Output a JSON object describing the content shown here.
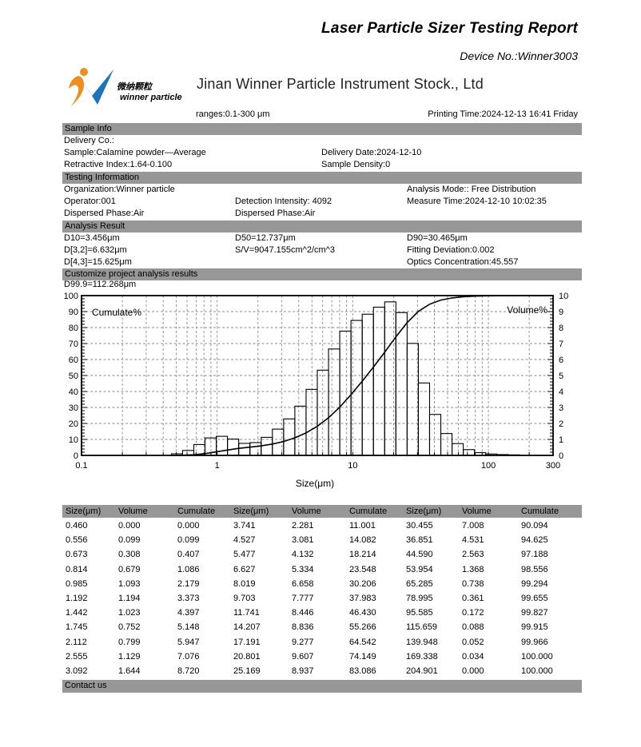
{
  "report": {
    "title": "Laser Particle Sizer Testing Report",
    "device_no": "Device No.:Winner3003",
    "company": "Jinan Winner Particle Instrument Stock., Ltd",
    "logo_cn": "微纳颗粒",
    "logo_en": "winner particle",
    "ranges": "ranges:0.1-300 μm",
    "printing_time": "Printing Time:2024-12-13 16:41 Friday"
  },
  "sections": {
    "sample_info": {
      "header": "Sample Info",
      "delivery_co": "Delivery Co.:",
      "sample": "Sample:Calamine powder—Average",
      "delivery_date": "Delivery Date:2024-12-10",
      "retractive_index": "Retractive Index:1.64-0.100",
      "sample_density": "Sample Density:0"
    },
    "testing_information": {
      "header": "Testing Information",
      "organization": "Organization:Winner particle",
      "analysis_mode": "Analysis Mode::  Free Distribution",
      "operator": "Operator:001",
      "detection_intensity": "Detection Intensity:  4092",
      "measure_time": "Measure Time:2024-12-10 10:02:35",
      "dispersed_phase_a": "Dispersed Phase:Air",
      "dispersed_phase_b": "Dispersed Phase:Air"
    },
    "analysis_result": {
      "header": "Analysis Result",
      "d10": "D10=3.456μm",
      "d50": "D50=12.737μm",
      "d90": "D90=30.465μm",
      "d32": "D[3,2]=6.632μm",
      "sv": "S/V=9047.155cm^2/cm^3",
      "fitting_deviation": "Fitting Deviation:0.002",
      "d43": "D[4,3]=15.625μm",
      "optics_concentration": "Optics Concentration:45.557"
    },
    "customize": {
      "header": "Customize project analysis results",
      "d999": "D99.9=112.268μm"
    },
    "contact": {
      "header": "Contact us"
    }
  },
  "chart_data": {
    "type": "bar",
    "subtype": "log-histogram with cumulative line",
    "title": "",
    "xlabel": "Size(μm)",
    "x_scale": "log",
    "x_min": 0.1,
    "x_max": 300,
    "x_tick_labels": [
      "0.1",
      "1",
      "10",
      "100",
      "300"
    ],
    "x_tick_values": [
      0.1,
      1,
      10,
      100,
      300
    ],
    "left_axis": {
      "label": "Cumulate%",
      "min": 0,
      "max": 100,
      "step": 10
    },
    "right_axis": {
      "label": "Volume%",
      "min": 0,
      "max": 10,
      "step": 1
    },
    "grid": "dashed",
    "sizes_um": [
      0.46,
      0.556,
      0.673,
      0.814,
      0.985,
      1.192,
      1.442,
      1.745,
      2.112,
      2.555,
      3.092,
      3.741,
      4.527,
      5.477,
      6.627,
      8.019,
      9.703,
      11.741,
      14.207,
      17.191,
      20.801,
      25.169,
      30.455,
      36.851,
      44.59,
      53.954,
      65.285,
      78.995,
      95.585,
      115.659,
      139.948,
      169.338,
      204.901
    ],
    "series": [
      {
        "name": "Volume%",
        "axis": "right",
        "style": "bars",
        "values": [
          0.0,
          0.099,
          0.308,
          0.679,
          1.093,
          1.194,
          1.023,
          0.752,
          0.799,
          1.129,
          1.644,
          2.281,
          3.081,
          4.132,
          5.334,
          6.658,
          7.777,
          8.446,
          8.836,
          9.277,
          9.607,
          8.937,
          7.008,
          4.531,
          2.563,
          1.368,
          0.738,
          0.361,
          0.172,
          0.088,
          0.052,
          0.034,
          0.0
        ]
      },
      {
        "name": "Cumulate%",
        "axis": "left",
        "style": "line",
        "values": [
          0.0,
          0.099,
          0.407,
          1.086,
          2.179,
          3.373,
          4.397,
          5.148,
          5.947,
          7.076,
          8.72,
          11.001,
          14.082,
          18.214,
          23.548,
          30.206,
          37.983,
          46.43,
          55.266,
          64.542,
          74.149,
          83.086,
          90.094,
          94.625,
          97.188,
          98.556,
          99.294,
          99.655,
          99.827,
          99.915,
          99.966,
          100.0,
          100.0
        ]
      }
    ]
  },
  "table": {
    "headers": [
      "Size(μm)",
      "Volume",
      "Cumulate",
      "Size(μm)",
      "Volume",
      "Cumulate",
      "Size(μm)",
      "Volume",
      "Cumulate"
    ],
    "rows": [
      [
        "0.460",
        "0.000",
        "0.000",
        "3.741",
        "2.281",
        "11.001",
        "30.455",
        "7.008",
        "90.094"
      ],
      [
        "0.556",
        "0.099",
        "0.099",
        "4.527",
        "3.081",
        "14.082",
        "36.851",
        "4.531",
        "94.625"
      ],
      [
        "0.673",
        "0.308",
        "0.407",
        "5.477",
        "4.132",
        "18.214",
        "44.590",
        "2.563",
        "97.188"
      ],
      [
        "0.814",
        "0.679",
        "1.086",
        "6.627",
        "5.334",
        "23.548",
        "53.954",
        "1.368",
        "98.556"
      ],
      [
        "0.985",
        "1.093",
        "2.179",
        "8.019",
        "6.658",
        "30.206",
        "65.285",
        "0.738",
        "99.294"
      ],
      [
        "1.192",
        "1.194",
        "3.373",
        "9.703",
        "7.777",
        "37.983",
        "78.995",
        "0.361",
        "99.655"
      ],
      [
        "1.442",
        "1.023",
        "4.397",
        "11.741",
        "8.446",
        "46.430",
        "95.585",
        "0.172",
        "99.827"
      ],
      [
        "1.745",
        "0.752",
        "5.148",
        "14.207",
        "8.836",
        "55.266",
        "115.659",
        "0.088",
        "99.915"
      ],
      [
        "2.112",
        "0.799",
        "5.947",
        "17.191",
        "9.277",
        "64.542",
        "139.948",
        "0.052",
        "99.966"
      ],
      [
        "2.555",
        "1.129",
        "7.076",
        "20.801",
        "9.607",
        "74.149",
        "169.338",
        "0.034",
        "100.000"
      ],
      [
        "3.092",
        "1.644",
        "8.720",
        "25.169",
        "8.937",
        "83.086",
        "204.901",
        "0.000",
        "100.000"
      ]
    ]
  },
  "colors": {
    "section_bar": "#979797",
    "logo_orange": "#EF8E1E",
    "logo_blue": "#1E73BE",
    "grid": "#8c8c8c"
  }
}
